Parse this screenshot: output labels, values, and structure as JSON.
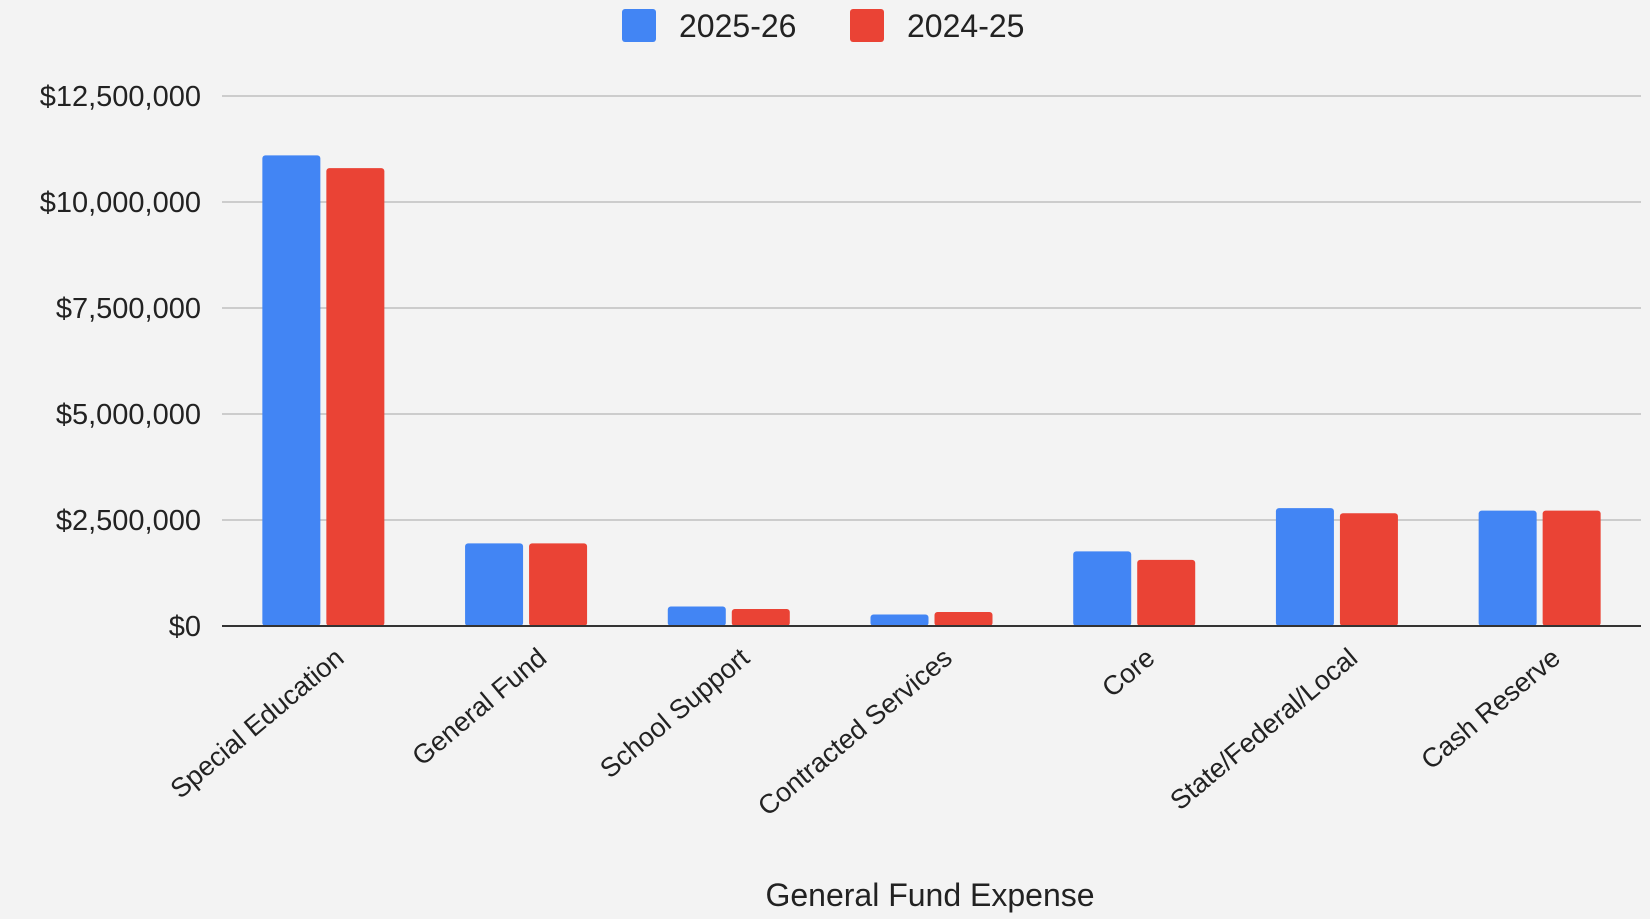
{
  "chart_data": {
    "type": "bar",
    "title": "",
    "xlabel": "General Fund Expense",
    "ylabel": "",
    "categories": [
      "Special Education",
      "General Fund",
      "School Support",
      "Contracted Services",
      "Core",
      "State/Federal/Local",
      "Cash Reserve"
    ],
    "series": [
      {
        "name": "2025-26",
        "color": "#4285f4",
        "values": [
          11100000,
          1950000,
          460000,
          270000,
          1760000,
          2780000,
          2720000
        ]
      },
      {
        "name": "2024-25",
        "color": "#ea4335",
        "values": [
          10800000,
          1950000,
          400000,
          330000,
          1560000,
          2660000,
          2720000
        ]
      }
    ],
    "ylim": [
      0,
      12500000
    ],
    "yticks": [
      0,
      2500000,
      5000000,
      7500000,
      10000000,
      12500000
    ],
    "ytick_labels": [
      "$0",
      "$2,500,000",
      "$5,000,000",
      "$7,500,000",
      "$10,000,000",
      "$12,500,000"
    ],
    "grid": true,
    "legend_position": "top-center",
    "colors": {
      "gridline": "#cccccc",
      "baseline": "#333333",
      "background": "#f3f3f3"
    }
  }
}
